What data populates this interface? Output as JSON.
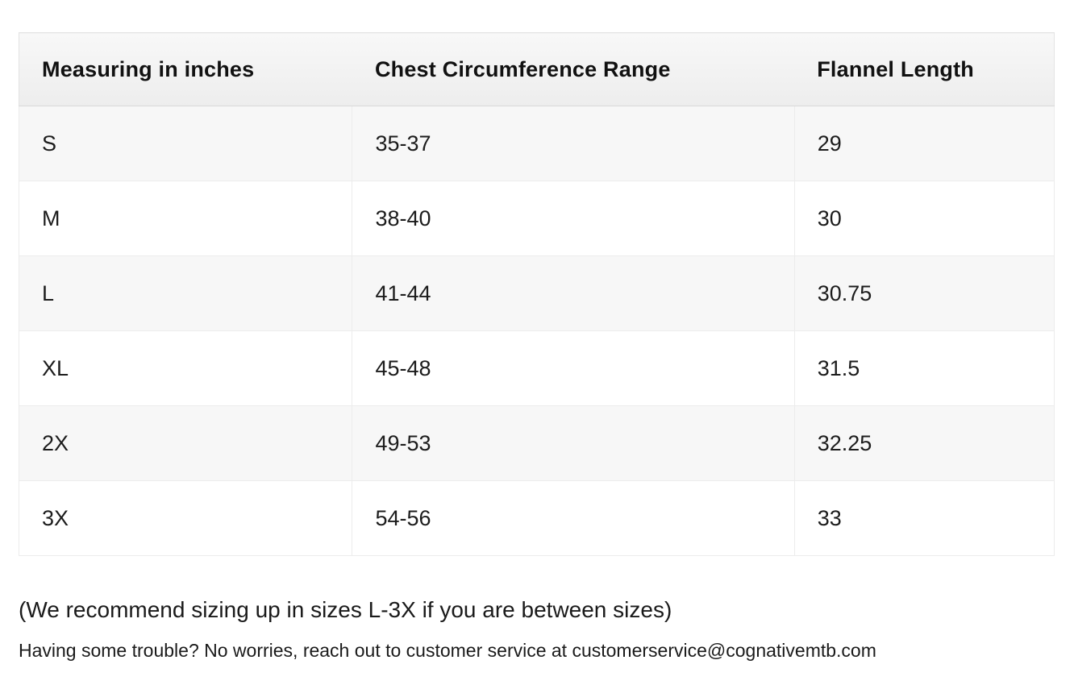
{
  "table": {
    "headers": [
      {
        "label": "Measuring in inches"
      },
      {
        "label": "Chest Circumference Range"
      },
      {
        "label": "Flannel Length"
      }
    ],
    "rows": [
      {
        "size": "S",
        "chest_range": "35-37",
        "flannel_length": "29"
      },
      {
        "size": "M",
        "chest_range": "38-40",
        "flannel_length": "30"
      },
      {
        "size": "L",
        "chest_range": "41-44",
        "flannel_length": "30.75"
      },
      {
        "size": "XL",
        "chest_range": "45-48",
        "flannel_length": "31.5"
      },
      {
        "size": "2X",
        "chest_range": "49-53",
        "flannel_length": "32.25"
      },
      {
        "size": "3X",
        "chest_range": "54-56",
        "flannel_length": "33"
      }
    ]
  },
  "notes": {
    "sizing_note": "(We recommend sizing up in sizes L-3X if you are between sizes)",
    "support_note": "Having some trouble? No worries, reach out to customer service at customerservice@cognativemtb.com"
  },
  "colors": {
    "header_bg_top": "#f8f8f8",
    "header_bg_bottom": "#ededed",
    "row_alt_bg": "#f7f7f7",
    "row_bg": "#ffffff",
    "table_border": "#e3e3e3",
    "header_divider": "#d8d8d8",
    "text": "#1c1c1c"
  }
}
